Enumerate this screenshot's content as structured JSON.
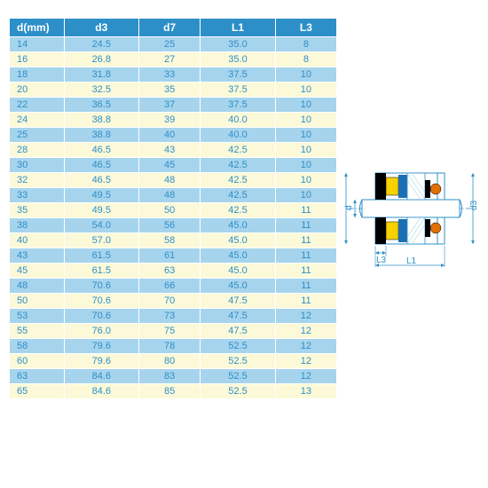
{
  "table": {
    "headers": [
      "d(mm)",
      "d3",
      "d7",
      "L1",
      "L3"
    ],
    "header_bg": "#2d8fc8",
    "header_color": "#ffffff",
    "row_colors": {
      "even": "#a7d4ed",
      "odd": "#fcf9d8"
    },
    "text_color": "#2d8fc8",
    "rows": [
      [
        "14",
        "24.5",
        "25",
        "35.0",
        "8"
      ],
      [
        "16",
        "26.8",
        "27",
        "35.0",
        "8"
      ],
      [
        "18",
        "31.8",
        "33",
        "37.5",
        "10"
      ],
      [
        "20",
        "32.5",
        "35",
        "37.5",
        "10"
      ],
      [
        "22",
        "36.5",
        "37",
        "37.5",
        "10"
      ],
      [
        "24",
        "38.8",
        "39",
        "40.0",
        "10"
      ],
      [
        "25",
        "38.8",
        "40",
        "40.0",
        "10"
      ],
      [
        "28",
        "46.5",
        "43",
        "42.5",
        "10"
      ],
      [
        "30",
        "46.5",
        "45",
        "42.5",
        "10"
      ],
      [
        "32",
        "46.5",
        "48",
        "42.5",
        "10"
      ],
      [
        "33",
        "49.5",
        "48",
        "42.5",
        "10"
      ],
      [
        "35",
        "49.5",
        "50",
        "42.5",
        "11"
      ],
      [
        "38",
        "54.0",
        "56",
        "45.0",
        "11"
      ],
      [
        "40",
        "57.0",
        "58",
        "45.0",
        "11"
      ],
      [
        "43",
        "61.5",
        "61",
        "45.0",
        "11"
      ],
      [
        "45",
        "61.5",
        "63",
        "45.0",
        "11"
      ],
      [
        "48",
        "70.6",
        "66",
        "45.0",
        "11"
      ],
      [
        "50",
        "70.6",
        "70",
        "47.5",
        "11"
      ],
      [
        "53",
        "70.6",
        "73",
        "47.5",
        "12"
      ],
      [
        "55",
        "76.0",
        "75",
        "47.5",
        "12"
      ],
      [
        "58",
        "79.6",
        "78",
        "52.5",
        "12"
      ],
      [
        "60",
        "79.6",
        "80",
        "52.5",
        "12"
      ],
      [
        "63",
        "84.6",
        "83",
        "52.5",
        "12"
      ],
      [
        "65",
        "84.6",
        "85",
        "52.5",
        "13"
      ]
    ]
  },
  "diagram": {
    "labels": {
      "d": "d",
      "d7": "d7",
      "d3": "d3",
      "L1": "L1",
      "L3": "L3"
    },
    "colors": {
      "outline": "#2d8fc8",
      "dim": "#2d8fc8",
      "black": "#000000",
      "yellow": "#f7d100",
      "blue": "#1b6fb5",
      "orange": "#e07000",
      "hatch": "#a7d4ed"
    }
  }
}
